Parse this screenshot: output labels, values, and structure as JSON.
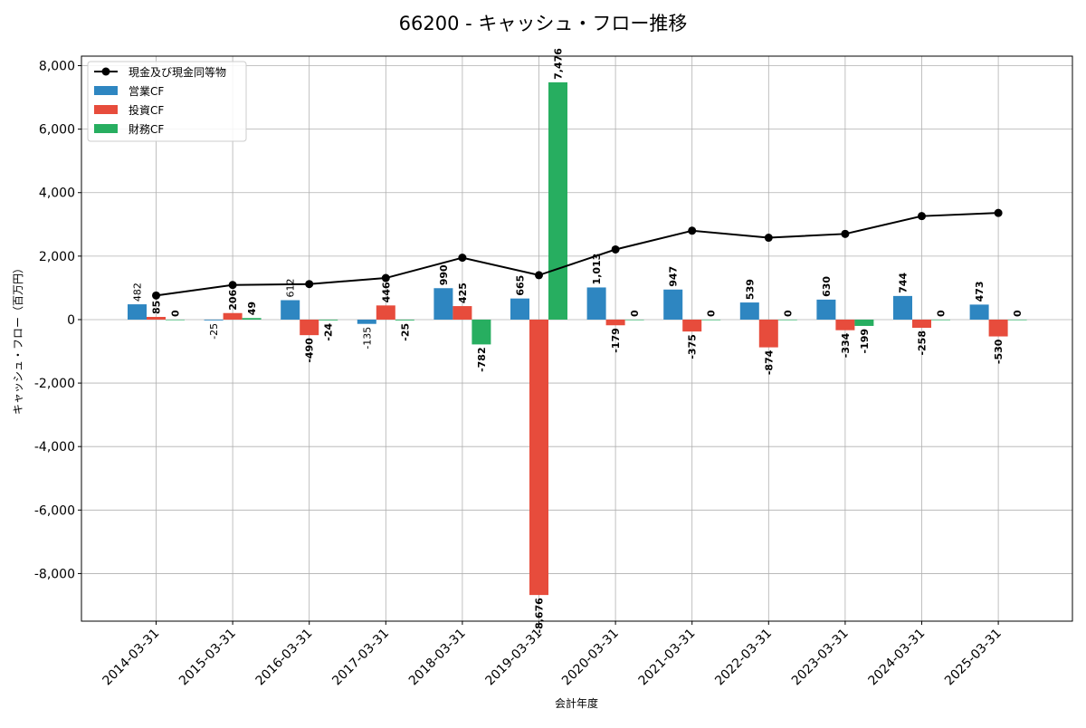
{
  "chart_data": {
    "type": "bar",
    "title": "66200 - キャッシュ・フロー推移",
    "xlabel": "会計年度",
    "ylabel": "キャッシュ・フロー（百万円）",
    "ylim": [
      -9500,
      8300
    ],
    "yticks": [
      -8000,
      -6000,
      -4000,
      -2000,
      0,
      2000,
      4000,
      6000,
      8000
    ],
    "ytick_labels": [
      "-8,000",
      "-6,000",
      "-4,000",
      "-2,000",
      "0",
      "2,000",
      "4,000",
      "6,000",
      "8,000"
    ],
    "grid": true,
    "legend_position": "top-left",
    "categories": [
      "2014-03-31",
      "2015-03-31",
      "2016-03-31",
      "2017-03-31",
      "2018-03-31",
      "2019-03-31",
      "2020-03-31",
      "2021-03-31",
      "2022-03-31",
      "2023-03-31",
      "2024-03-31",
      "2025-03-31"
    ],
    "series": [
      {
        "name": "営業CF",
        "kind": "bar",
        "color": "#2e86c1",
        "values": [
          482,
          -25,
          612,
          -135,
          990,
          665,
          1013,
          947,
          539,
          630,
          744,
          473
        ],
        "labels": [
          "482",
          "-25",
          "612",
          "-135",
          "990",
          "665",
          "1,013",
          "947",
          "539",
          "630",
          "744",
          "473"
        ]
      },
      {
        "name": "投資CF",
        "kind": "bar",
        "color": "#e74c3c",
        "values": [
          85,
          206,
          -490,
          446,
          425,
          -8676,
          -179,
          -375,
          -874,
          -334,
          -258,
          -530
        ],
        "labels": [
          "85",
          "206",
          "-490",
          "446",
          "425",
          "-8,676",
          "-179",
          "-375",
          "-874",
          "-334",
          "-258",
          "-530"
        ]
      },
      {
        "name": "財務CF",
        "kind": "bar",
        "color": "#27ae60",
        "values": [
          0,
          49,
          -24,
          -25,
          -782,
          7476,
          0,
          0,
          0,
          -199,
          0,
          0
        ],
        "labels": [
          "0",
          "49",
          "-24",
          "-25",
          "-782",
          "7,476",
          "0",
          "0",
          "0",
          "-199",
          "0",
          "0"
        ]
      },
      {
        "name": "現金及び現金同等物",
        "kind": "line",
        "color": "#000000",
        "values": [
          760,
          1090,
          1120,
          1310,
          1950,
          1400,
          2210,
          2800,
          2580,
          2700,
          3260,
          3360
        ]
      }
    ]
  }
}
